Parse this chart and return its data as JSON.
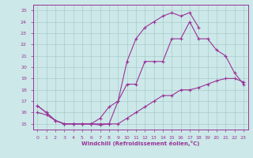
{
  "xlabel": "Windchill (Refroidissement éolien,°C)",
  "xlim": [
    -0.5,
    23.5
  ],
  "ylim": [
    14.5,
    25.5
  ],
  "xticks": [
    0,
    1,
    2,
    3,
    4,
    5,
    6,
    7,
    8,
    9,
    10,
    11,
    12,
    13,
    14,
    15,
    16,
    17,
    18,
    19,
    20,
    21,
    22,
    23
  ],
  "yticks": [
    15,
    16,
    17,
    18,
    19,
    20,
    21,
    22,
    23,
    24,
    25
  ],
  "bg_color": "#cce8e8",
  "line_color": "#993399",
  "grid_color": "#aacccc",
  "line1_x": [
    0,
    1,
    2,
    3,
    4,
    5,
    6,
    7,
    8,
    9,
    10,
    11,
    12,
    13,
    14,
    15,
    16,
    17,
    18,
    19,
    20,
    21,
    22,
    23
  ],
  "line1_y": [
    16.6,
    16.0,
    15.3,
    15.0,
    15.0,
    15.0,
    15.0,
    15.5,
    16.5,
    17.0,
    18.5,
    18.5,
    20.5,
    20.5,
    20.5,
    22.5,
    22.5,
    24.0,
    22.5,
    22.5,
    21.5,
    21.0,
    19.5,
    18.5
  ],
  "line2_x": [
    0,
    1,
    2,
    3,
    4,
    5,
    6,
    7,
    8,
    9,
    10,
    11,
    12,
    13,
    14,
    15,
    16,
    17,
    18
  ],
  "line2_y": [
    16.6,
    16.0,
    15.3,
    15.0,
    15.0,
    15.0,
    15.0,
    15.0,
    15.0,
    17.0,
    20.5,
    22.5,
    23.5,
    24.0,
    24.5,
    24.8,
    24.5,
    24.8,
    23.5
  ],
  "line3_x": [
    0,
    1,
    2,
    3,
    4,
    5,
    6,
    7,
    8,
    9,
    10,
    11,
    12,
    13,
    14,
    15,
    16,
    17,
    18,
    19,
    20,
    21,
    22,
    23
  ],
  "line3_y": [
    16.0,
    15.8,
    15.3,
    15.0,
    15.0,
    15.0,
    15.0,
    14.9,
    15.0,
    15.0,
    15.5,
    16.0,
    16.5,
    17.0,
    17.5,
    17.5,
    18.0,
    18.0,
    18.2,
    18.5,
    18.8,
    19.0,
    19.0,
    18.7
  ]
}
